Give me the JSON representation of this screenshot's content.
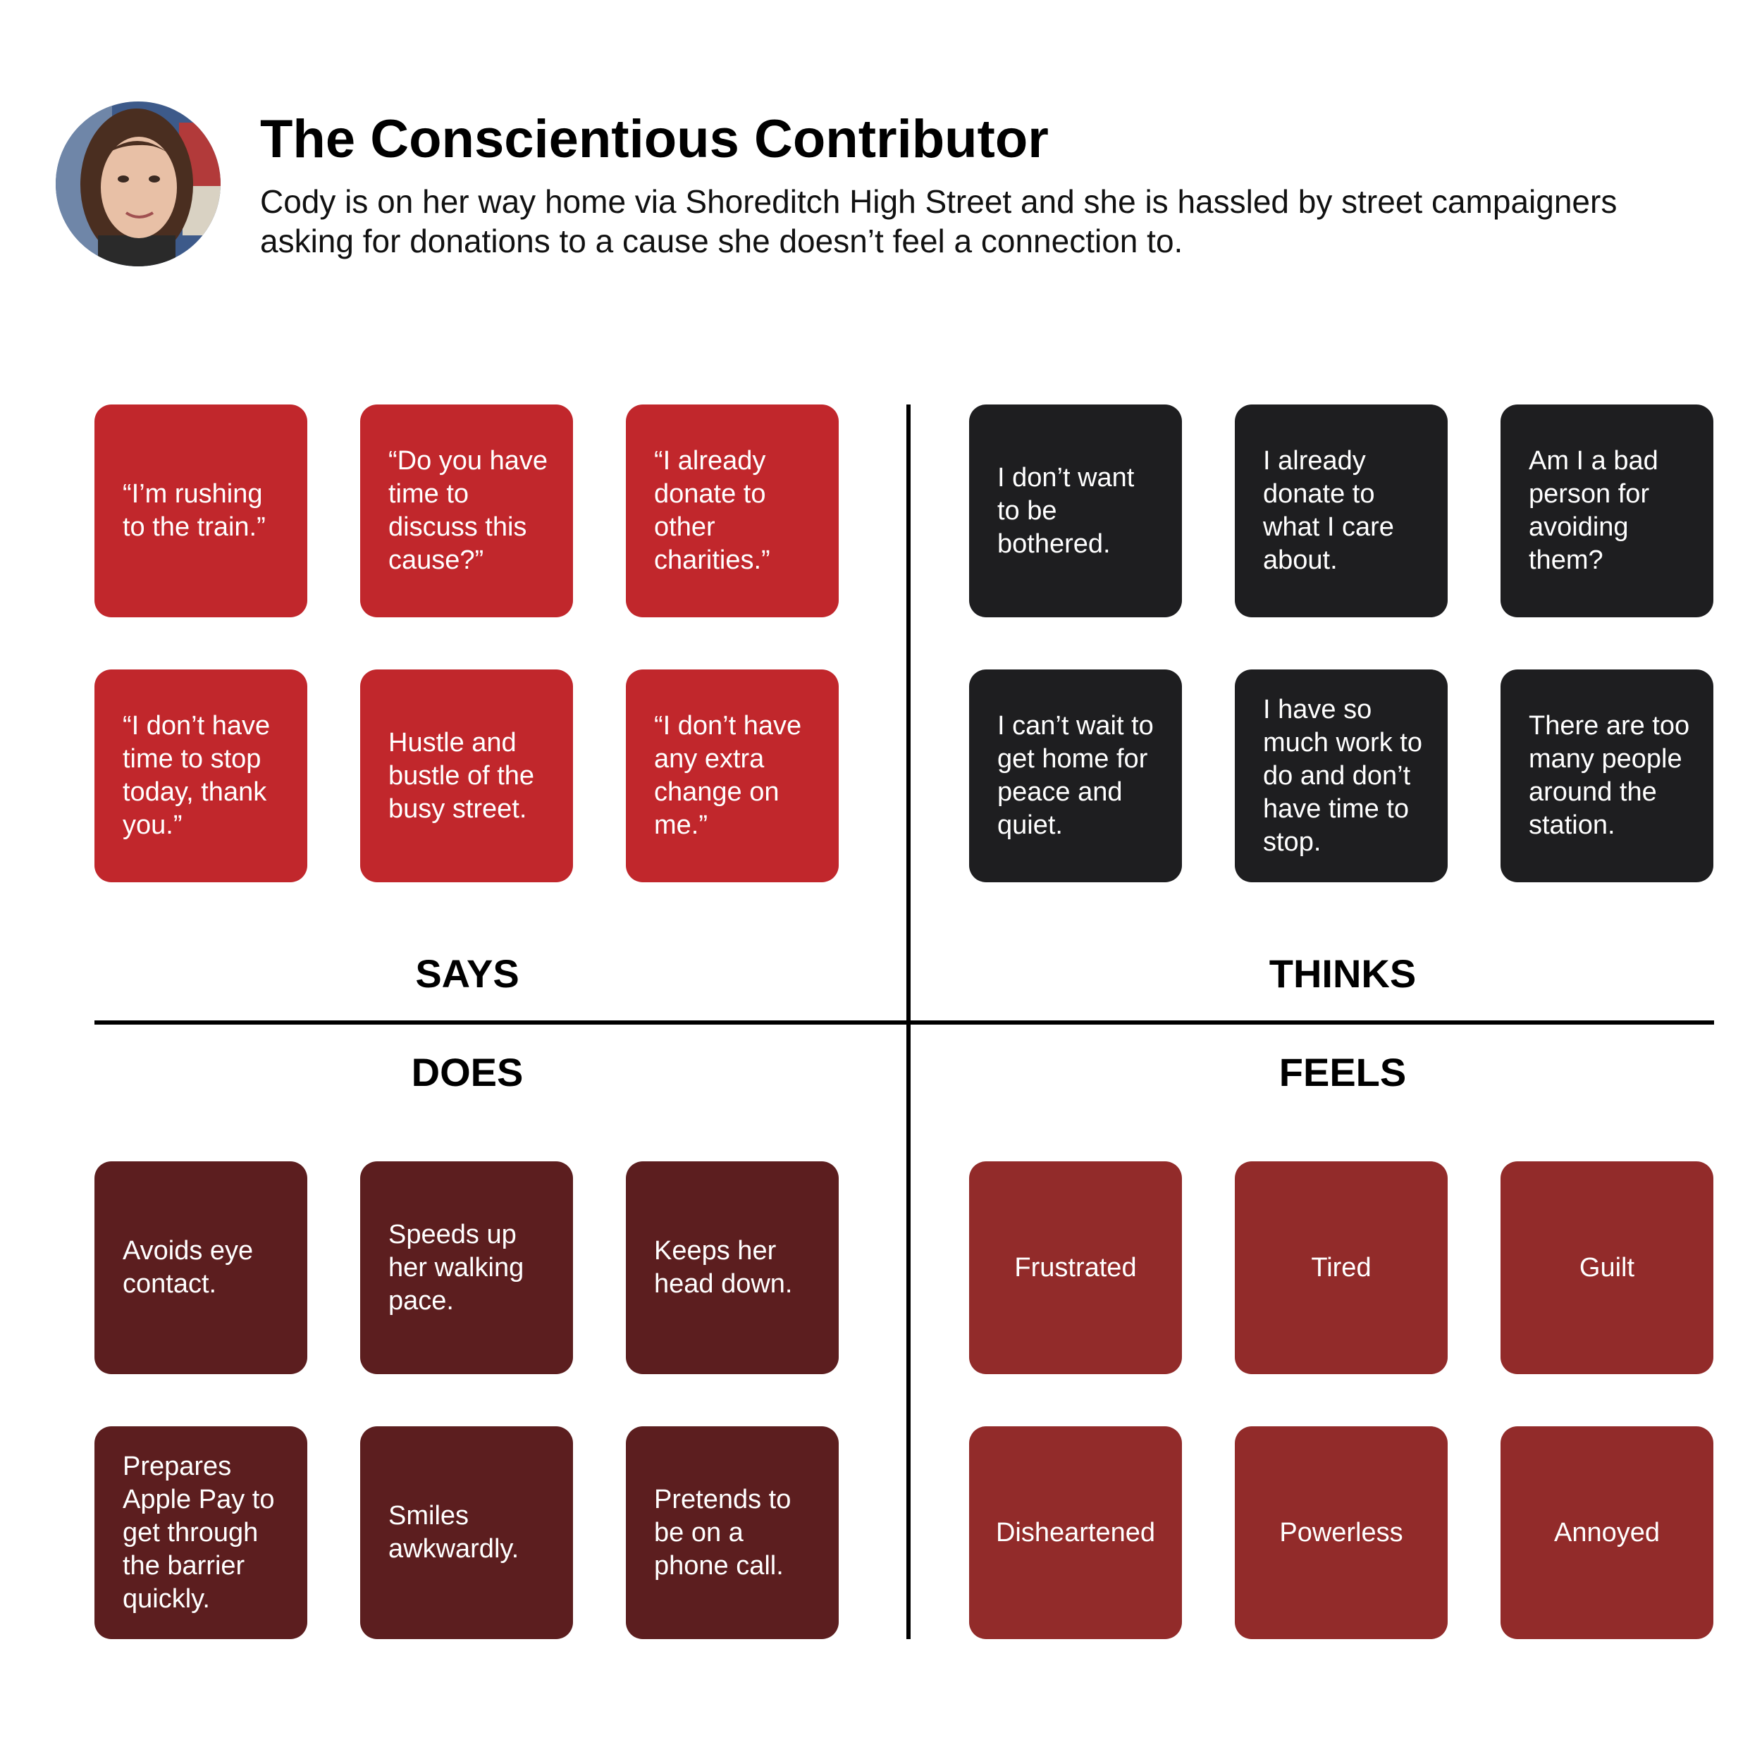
{
  "header": {
    "title": "The Conscientious Contributor",
    "subtitle": "Cody is on her way home via Shoreditch High Street and she is hassled by street campaigners asking for donations to a cause she doesn’t feel a connection to."
  },
  "colors": {
    "says": "#c1272c",
    "thinks": "#1e1e20",
    "does": "#5c1e1f",
    "feels": "#922b2a"
  },
  "quadrants": {
    "says": {
      "label": "SAYS",
      "items": [
        "“I’m rushing to the train.”",
        "“Do you have time to discuss this cause?”",
        "“I already donate to other charities.”",
        "“I don’t have time to stop today, thank you.”",
        "Hustle and bustle of the busy street.",
        "“I don’t have any extra change on me.”"
      ]
    },
    "thinks": {
      "label": "THINKS",
      "items": [
        "I don’t want to be bothered.",
        "I already donate to what I care about.",
        "Am I a bad person for avoiding them?",
        "I can’t wait to get home for peace and quiet.",
        "I have so much work to do and don’t have time to stop.",
        "There are too many people around the station."
      ]
    },
    "does": {
      "label": "DOES",
      "items": [
        "Avoids eye contact.",
        "Speeds up her walking pace.",
        "Keeps her head down.",
        "Prepares Apple Pay to get through the barrier quickly.",
        "Smiles awkwardly.",
        "Pretends to be on a phone call."
      ]
    },
    "feels": {
      "label": "FEELS",
      "items": [
        "Frustrated",
        "Tired",
        "Guilt",
        "Disheartened",
        "Powerless",
        "Annoyed"
      ]
    }
  }
}
